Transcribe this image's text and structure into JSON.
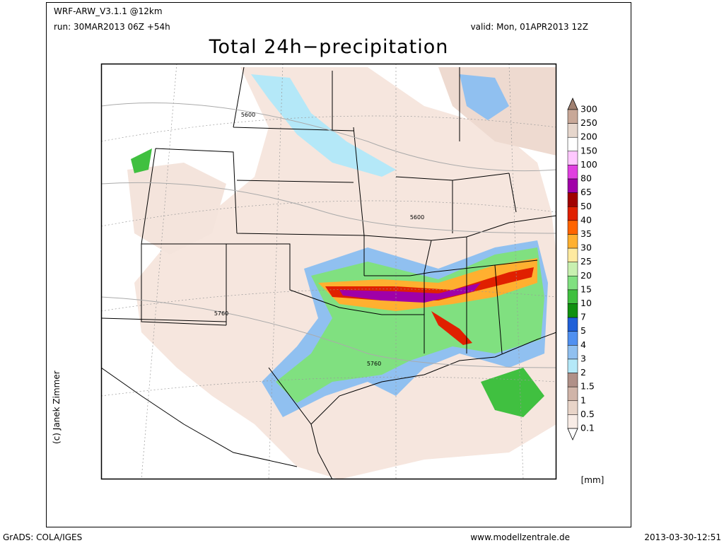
{
  "header": {
    "model": "WRF-ARW_V3.1.1 @12km",
    "run": "run: 30MAR2013 06Z +54h",
    "valid": "valid: Mon, 01APR2013 12Z",
    "title": "Total 24h−precipitation"
  },
  "map": {
    "contour_labels": [
      "5600",
      "5600",
      "5760",
      "5760"
    ]
  },
  "colorbar": {
    "labels": [
      "300",
      "250",
      "200",
      "150",
      "100",
      "80",
      "65",
      "50",
      "40",
      "35",
      "30",
      "25",
      "20",
      "15",
      "10",
      "7",
      "5",
      "4",
      "3",
      "2",
      "1.5",
      "1",
      "0.5",
      "0.1"
    ],
    "colors": [
      "#c8a898",
      "#e6d6cc",
      "#ffffff",
      "#ffc8ff",
      "#e040e0",
      "#a000a8",
      "#a00000",
      "#e02000",
      "#ff6400",
      "#ffb030",
      "#ffeaa0",
      "#c8f0b0",
      "#80e080",
      "#40c040",
      "#109010",
      "#2060d8",
      "#5090f0",
      "#90c0f0",
      "#b4e8f8",
      "#b09088",
      "#d0b4a8",
      "#e8d4c8",
      "#f8ece6"
    ],
    "above_color": "#a08070",
    "below_color": "#ffffff",
    "unit": "[mm]"
  },
  "credit": "(c) Janek Zimmer",
  "footer": {
    "left": "GrADS: COLA/IGES",
    "center": "www.modellzentrale.de",
    "right": "2013-03-30-12:51"
  }
}
